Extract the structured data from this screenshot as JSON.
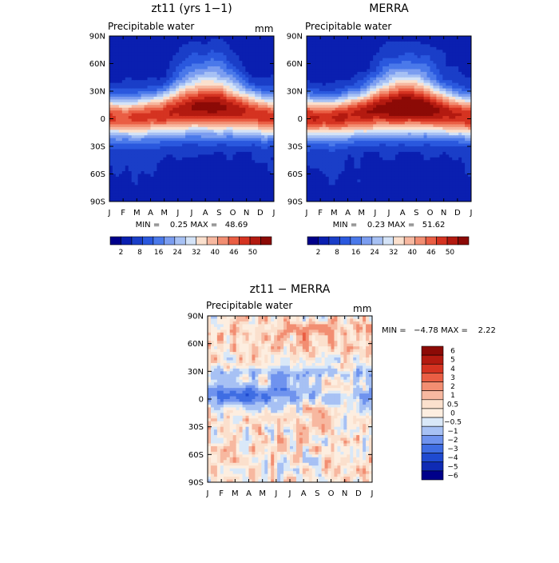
{
  "chart_data": [
    {
      "type": "heatmap",
      "title": "zt11 (yrs 1−1)",
      "subtitle": "Precipitable water",
      "units": "mm",
      "x_ticks": [
        "J",
        "F",
        "M",
        "A",
        "M",
        "J",
        "J",
        "A",
        "S",
        "O",
        "N",
        "D",
        "J"
      ],
      "y_ticks": [
        "90N",
        "60N",
        "30N",
        "0",
        "30S",
        "60S",
        "90S"
      ],
      "ylim": [
        -90,
        90
      ],
      "stats_text": "MIN =    0.25 MAX =   48.69",
      "min": 0.25,
      "max": 48.69,
      "colorbar_levels": [
        0,
        4,
        8,
        12,
        16,
        20,
        24,
        28,
        32,
        36,
        40,
        44,
        48,
        52
      ],
      "colorbar_labels": [
        "2",
        "8",
        "16",
        "24",
        "32",
        "40",
        "46",
        "50"
      ],
      "colorbar_colors": [
        "#00008a",
        "#0a1fb0",
        "#1a3ec8",
        "#2a58de",
        "#4a79ea",
        "#7b9df0",
        "#a7c1f4",
        "#d4e3f7",
        "#fbe0cd",
        "#f7b8a0",
        "#f28e72",
        "#ea5e44",
        "#d53321",
        "#b31a10",
        "#8c0a06"
      ]
    },
    {
      "type": "heatmap",
      "title": "MERRA",
      "subtitle": "Precipitable water",
      "units": "",
      "x_ticks": [
        "J",
        "F",
        "M",
        "A",
        "M",
        "J",
        "J",
        "A",
        "S",
        "O",
        "N",
        "D",
        "J"
      ],
      "y_ticks": [
        "90N",
        "60N",
        "30N",
        "0",
        "30S",
        "60S",
        "90S"
      ],
      "ylim": [
        -90,
        90
      ],
      "stats_text": "MIN =    0.23 MAX =   51.62",
      "min": 0.23,
      "max": 51.62,
      "colorbar_levels": [
        0,
        4,
        8,
        12,
        16,
        20,
        24,
        28,
        32,
        36,
        40,
        44,
        48,
        52
      ],
      "colorbar_labels": [
        "2",
        "8",
        "16",
        "24",
        "32",
        "40",
        "46",
        "50"
      ],
      "colorbar_colors": [
        "#00008a",
        "#0a1fb0",
        "#1a3ec8",
        "#2a58de",
        "#4a79ea",
        "#7b9df0",
        "#a7c1f4",
        "#d4e3f7",
        "#fbe0cd",
        "#f7b8a0",
        "#f28e72",
        "#ea5e44",
        "#d53321",
        "#b31a10",
        "#8c0a06"
      ]
    },
    {
      "type": "heatmap",
      "title": "zt11 − MERRA",
      "subtitle": "Precipitable water",
      "units": "mm",
      "x_ticks": [
        "J",
        "F",
        "M",
        "A",
        "M",
        "J",
        "J",
        "A",
        "S",
        "O",
        "N",
        "D",
        "J"
      ],
      "y_ticks": [
        "90N",
        "60N",
        "30N",
        "0",
        "30S",
        "60S",
        "90S"
      ],
      "ylim": [
        -90,
        90
      ],
      "stats_text": "MIN =   −4.78 MAX =    2.22",
      "min": -4.78,
      "max": 2.22,
      "colorbar_labels": [
        "6",
        "5",
        "4",
        "3",
        "2",
        "1",
        "0.5",
        "0",
        "−0.5",
        "−1",
        "−2",
        "−3",
        "−4",
        "−5",
        "−6"
      ],
      "colorbar_colors": [
        "#8c0a06",
        "#b31a10",
        "#d53321",
        "#ea5e44",
        "#f28e72",
        "#f7b8a0",
        "#fbe0cd",
        "#fdeee0",
        "#d9e8f8",
        "#a7c1f4",
        "#6f93ee",
        "#3f6de3",
        "#1f4ad0",
        "#0f2bb4",
        "#00008a"
      ]
    }
  ]
}
